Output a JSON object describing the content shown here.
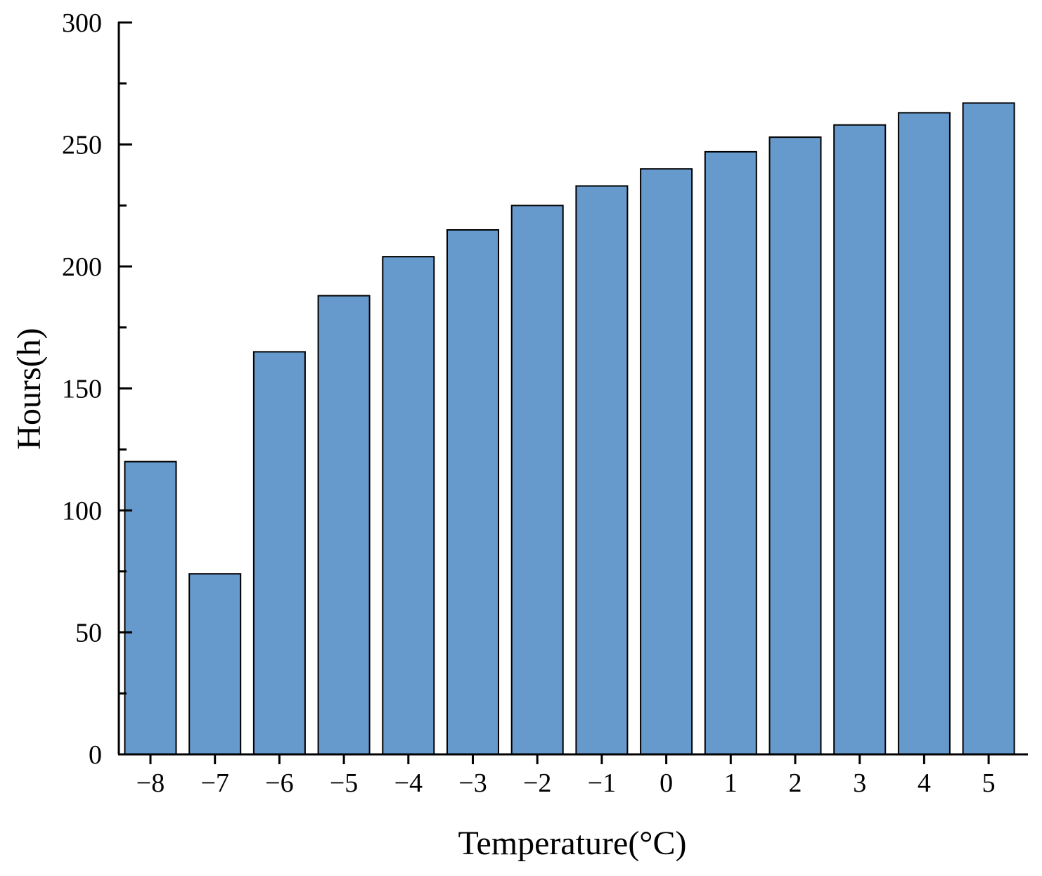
{
  "chart_data": {
    "type": "bar",
    "xlabel": "Temperature(°C)",
    "ylabel": "Hours(h)",
    "categories": [
      "−8",
      "−7",
      "−6",
      "−5",
      "−4",
      "−3",
      "−2",
      "−1",
      "0",
      "1",
      "2",
      "3",
      "4",
      "5"
    ],
    "values": [
      120,
      74,
      165,
      188,
      204,
      215,
      225,
      233,
      240,
      247,
      253,
      258,
      263,
      267
    ],
    "ylim": [
      0,
      300
    ],
    "yticks": [
      "0",
      "50",
      "100",
      "150",
      "200",
      "250",
      "300"
    ],
    "grid": false,
    "bar_color": "#6699cc"
  }
}
